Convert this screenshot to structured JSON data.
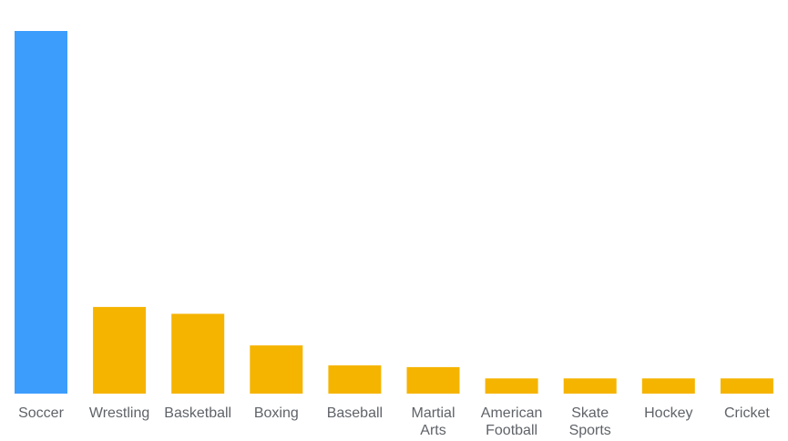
{
  "chart_data": {
    "type": "bar",
    "categories": [
      "Soccer",
      "Wrestling",
      "Basketball",
      "Boxing",
      "Baseball",
      "Martial Arts",
      "American Football",
      "Skate Sports",
      "Hockey",
      "Cricket"
    ],
    "category_lines": [
      [
        "Soccer"
      ],
      [
        "Wrestling"
      ],
      [
        "Basketball"
      ],
      [
        "Boxing"
      ],
      [
        "Baseball"
      ],
      [
        "Martial",
        "Arts"
      ],
      [
        "American",
        "Football"
      ],
      [
        "Skate",
        "Sports"
      ],
      [
        "Hockey"
      ],
      [
        "Cricket"
      ]
    ],
    "values": [
      100,
      23.9,
      22,
      13.3,
      7.8,
      7.3,
      4.2,
      4.2,
      4.2,
      4.2
    ],
    "ylim": [
      0,
      100
    ],
    "grid": false,
    "legend": "none",
    "colors": {
      "highlight": "#3d9dfd",
      "default": "#f5b400"
    },
    "highlight_index": 0
  }
}
